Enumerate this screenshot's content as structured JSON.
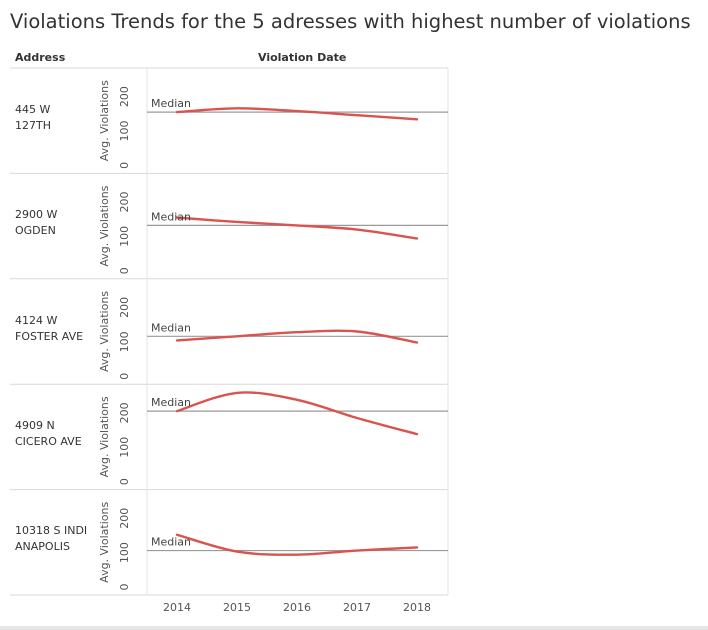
{
  "title": "Violations Trends for the 5 adresses with highest number of violations",
  "headers": {
    "address": "Address",
    "violation_date": "Violation Date"
  },
  "chart_data": {
    "type": "line",
    "title": "Violations Trends for the 5 adresses with highest number of violations",
    "xlabel": "Violation Date",
    "ylabel": "Avg. Violations",
    "x": [
      2014,
      2015,
      2016,
      2017,
      2018
    ],
    "x_ticks": [
      "2014",
      "2015",
      "2016",
      "2017",
      "2018"
    ],
    "y_ticks": [
      "0",
      "100",
      "200"
    ],
    "ylim": [
      0,
      260
    ],
    "reference_line_label": "Median",
    "line_color": "#d9534f",
    "rows": [
      {
        "address_lines": [
          "445 W",
          "127TH"
        ],
        "values": [
          155,
          166,
          158,
          146,
          134
        ],
        "median": 155
      },
      {
        "address_lines": [
          "2900 W",
          "OGDEN"
        ],
        "values": [
          155,
          142,
          132,
          120,
          94
        ],
        "median": 132
      },
      {
        "address_lines": [
          "4124 W",
          "FOSTER AVE"
        ],
        "values": [
          104,
          116,
          128,
          130,
          98
        ],
        "median": 116
      },
      {
        "address_lines": [
          "4909 N",
          "CICERO AVE"
        ],
        "values": [
          205,
          258,
          238,
          185,
          138
        ],
        "median": 205
      },
      {
        "address_lines": [
          "10318 S INDI",
          "ANAPOLIS"
        ],
        "values": [
          152,
          103,
          94,
          106,
          115
        ],
        "median": 106
      }
    ]
  }
}
